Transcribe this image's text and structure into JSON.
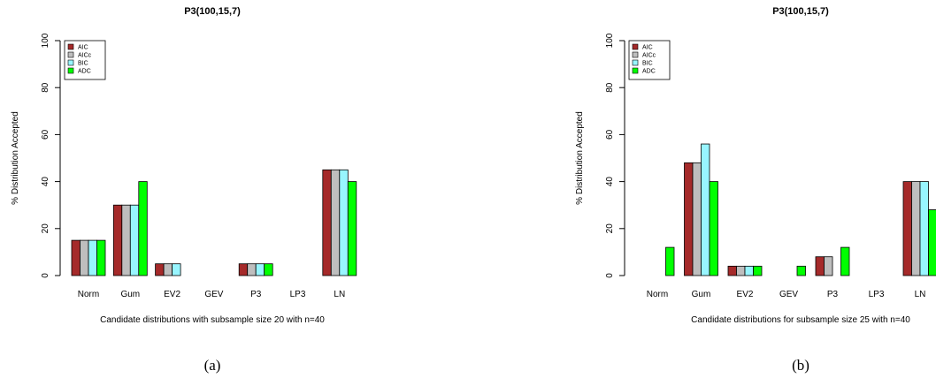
{
  "chart_data": [
    {
      "type": "bar",
      "title": "P3(100,15,7)",
      "y_label": "% Distribution Accepted",
      "x_label": "Candidate distributions with subsample size 20 with n=40",
      "caption": "(a)",
      "categories": [
        "Norm",
        "Gum",
        "EV2",
        "GEV",
        "P3",
        "LP3",
        "LN"
      ],
      "series": [
        {
          "name": "AIC",
          "color": "#a52a2a",
          "values": [
            15,
            30,
            5,
            0,
            5,
            0,
            45
          ]
        },
        {
          "name": "AICc",
          "color": "#bebebe",
          "values": [
            15,
            30,
            5,
            0,
            5,
            0,
            45
          ]
        },
        {
          "name": "BIC",
          "color": "#98f5ff",
          "values": [
            15,
            30,
            5,
            0,
            5,
            0,
            45
          ]
        },
        {
          "name": "ADC",
          "color": "#00ff00",
          "values": [
            15,
            40,
            0,
            0,
            5,
            0,
            40
          ]
        }
      ],
      "ylim": [
        0,
        100
      ],
      "yticks": [
        0,
        20,
        40,
        60,
        80,
        100
      ],
      "legend": "top-left"
    },
    {
      "type": "bar",
      "title": "P3(100,15,7)",
      "y_label": "% Distribution Accepted",
      "x_label": "Candidate distributions for subsample size 25 with n=40",
      "caption": "(b)",
      "categories": [
        "Norm",
        "Gum",
        "EV2",
        "GEV",
        "P3",
        "LP3",
        "LN"
      ],
      "series": [
        {
          "name": "AIC",
          "color": "#a52a2a",
          "values": [
            0,
            48,
            4,
            0,
            8,
            0,
            40
          ]
        },
        {
          "name": "AICc",
          "color": "#bebebe",
          "values": [
            0,
            48,
            4,
            0,
            8,
            0,
            40
          ]
        },
        {
          "name": "BIC",
          "color": "#98f5ff",
          "values": [
            0,
            56,
            4,
            0,
            0,
            0,
            40
          ]
        },
        {
          "name": "ADC",
          "color": "#00ff00",
          "values": [
            12,
            40,
            4,
            4,
            12,
            0,
            28
          ]
        }
      ],
      "ylim": [
        0,
        100
      ],
      "yticks": [
        0,
        20,
        40,
        60,
        80,
        100
      ],
      "legend": "top-left"
    }
  ]
}
